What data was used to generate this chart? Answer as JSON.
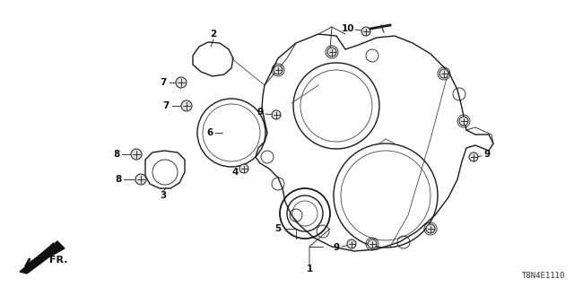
{
  "bg_color": "#ffffff",
  "diagram_code": "T8N4E1110",
  "color_main": "#1a1a1a",
  "color_mid": "#444444",
  "lw_main": 1.0,
  "lw_thin": 0.6,
  "figsize": [
    6.4,
    3.2
  ],
  "dpi": 100
}
